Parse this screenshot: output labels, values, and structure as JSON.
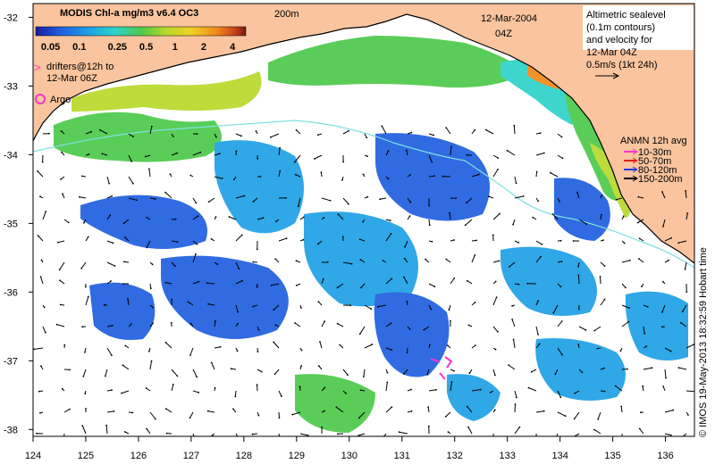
{
  "chart_data": {
    "type": "map",
    "title": "MODIS Chl-a mg/m3 v6.4 OC3",
    "date": "12-Mar-2004",
    "time": "04Z",
    "colorbar": {
      "ticks": [
        "0.05",
        "0.1",
        "0.25",
        "0.5",
        "1",
        "2",
        "4"
      ],
      "colors": [
        "#1a1aa0",
        "#1f5fe0",
        "#1fa0e6",
        "#2ed3c8",
        "#4cc94a",
        "#b8d92a",
        "#f2d028",
        "#f08a1c",
        "#c8401a",
        "#7a1a10"
      ]
    },
    "contour_label": "200m",
    "drifters_label": [
      "drifters@12h to",
      "12-Mar 06Z"
    ],
    "argo_label": "Argo",
    "altimetry_label": [
      "Altimetric sealevel",
      "(0.1m contours)",
      "and velocity for",
      "12-Mar 04Z",
      "0.5m/s (1kt 24h)"
    ],
    "anmn": {
      "title": "ANMN 12h avg",
      "items": [
        {
          "label": "10-30m",
          "color": "#ff33cc"
        },
        {
          "label": "50-70m",
          "color": "#e0201a"
        },
        {
          "label": "80-120m",
          "color": "#2a3ad8"
        },
        {
          "label": "150-200m",
          "color": "#000000"
        }
      ]
    },
    "credit": "© IMOS 19-May-2013 18:32:59 Hobart time",
    "x_ticks": [
      "124",
      "125",
      "126",
      "127",
      "128",
      "129",
      "130",
      "131",
      "132",
      "133",
      "134",
      "135",
      "136"
    ],
    "y_ticks": [
      "-32",
      "-33",
      "-34",
      "-35",
      "-36",
      "-37",
      "-38"
    ],
    "xlim": [
      124,
      136.55
    ],
    "ylim": [
      -38.1,
      -31.8
    ]
  }
}
